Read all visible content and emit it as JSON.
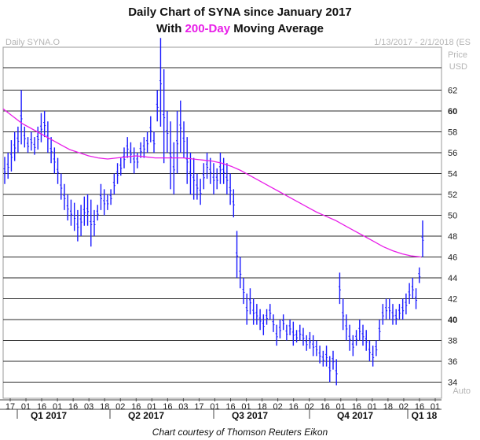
{
  "chart_data": {
    "type": "line",
    "title_line1": "Daily Chart of SYNA since January 2017",
    "title_line2_prefix": "With ",
    "title_line2_highlight": "200-Day",
    "title_line2_suffix": " Moving Average",
    "symbol": "Daily SYNA.O",
    "date_range": "1/13/2017 - 2/1/2018 (ES",
    "unit_price": "Price",
    "unit_currency": "USD",
    "auto_label": "Auto",
    "credit": "Chart courtesy of Thomson Reuters Eikon",
    "ylim": [
      33,
      67
    ],
    "y_ticks": [
      34,
      36,
      38,
      40,
      42,
      44,
      46,
      48,
      50,
      52,
      54,
      56,
      58,
      60,
      62
    ],
    "y_bold_ticks": [
      40,
      60
    ],
    "grid": true,
    "x_tick_labels": [
      "17",
      "01",
      "16",
      "01",
      "16",
      "03",
      "18",
      "02",
      "16",
      "01",
      "16",
      "03",
      "17",
      "01",
      "16",
      "01",
      "18",
      "02",
      "16",
      "02",
      "16",
      "01",
      "16",
      "01",
      "18",
      "02",
      "16",
      "01"
    ],
    "quarters": [
      "Q1 2017",
      "Q2 2017",
      "Q3 2017",
      "Q4 2017",
      "Q1 18"
    ],
    "colors": {
      "price": "#1a1aff",
      "ma": "#e81ee8",
      "grid": "#2a2a2a",
      "tick_text": "#222222"
    },
    "series": [
      {
        "type": "ohlc",
        "color": "#1a1aff",
        "values": [
          [
            55.6,
            53.0
          ],
          [
            56.0,
            53.5
          ],
          [
            57.2,
            54.2
          ],
          [
            58.0,
            55.2
          ],
          [
            58.5,
            56.0
          ],
          [
            62.0,
            56.8
          ],
          [
            58.5,
            56.5
          ],
          [
            57.5,
            56.0
          ],
          [
            58.0,
            56.2
          ],
          [
            57.5,
            55.8
          ],
          [
            58.5,
            56.3
          ],
          [
            59.8,
            57.0
          ],
          [
            60.0,
            57.5
          ],
          [
            59.0,
            56.0
          ],
          [
            57.5,
            55.0
          ],
          [
            56.5,
            54.0
          ],
          [
            55.5,
            53.0
          ],
          [
            54.0,
            51.5
          ],
          [
            53.0,
            50.5
          ],
          [
            52.0,
            49.5
          ],
          [
            51.5,
            49.0
          ],
          [
            51.2,
            48.5
          ],
          [
            50.5,
            47.5
          ],
          [
            51.0,
            48.0
          ],
          [
            51.8,
            49.0
          ],
          [
            52.0,
            49.0
          ],
          [
            51.5,
            47.0
          ],
          [
            50.5,
            48.0
          ],
          [
            51.0,
            49.5
          ],
          [
            53.0,
            50.5
          ],
          [
            52.5,
            50.0
          ],
          [
            52.0,
            50.5
          ],
          [
            52.5,
            51.0
          ],
          [
            54.0,
            52.0
          ],
          [
            55.0,
            53.0
          ],
          [
            55.5,
            53.8
          ],
          [
            56.5,
            54.5
          ],
          [
            57.5,
            55.5
          ],
          [
            57.0,
            55.0
          ],
          [
            56.5,
            54.0
          ],
          [
            56.0,
            54.5
          ],
          [
            57.0,
            55.5
          ],
          [
            57.5,
            55.5
          ],
          [
            58.0,
            56.0
          ],
          [
            59.5,
            57.0
          ],
          [
            58.0,
            56.0
          ],
          [
            62.0,
            59.0
          ],
          [
            67.0,
            58.5
          ],
          [
            64.0,
            55.0
          ],
          [
            60.0,
            56.0
          ],
          [
            59.0,
            52.5
          ],
          [
            57.0,
            52.0
          ],
          [
            60.0,
            54.0
          ],
          [
            61.0,
            56.0
          ],
          [
            59.0,
            55.5
          ],
          [
            57.5,
            53.0
          ],
          [
            56.0,
            52.0
          ],
          [
            55.5,
            51.5
          ],
          [
            54.0,
            51.5
          ],
          [
            53.5,
            51.0
          ],
          [
            55.0,
            52.5
          ],
          [
            56.0,
            53.5
          ],
          [
            55.5,
            53.0
          ],
          [
            55.0,
            52.0
          ],
          [
            54.5,
            52.5
          ],
          [
            56.0,
            53.0
          ],
          [
            55.5,
            53.0
          ],
          [
            55.0,
            52.0
          ],
          [
            54.0,
            51.0
          ],
          [
            52.5,
            49.8
          ],
          [
            48.5,
            44.0
          ],
          [
            46.0,
            43.0
          ],
          [
            44.0,
            41.5
          ],
          [
            42.5,
            39.5
          ],
          [
            43.0,
            40.5
          ],
          [
            42.0,
            39.5
          ],
          [
            41.5,
            39.5
          ],
          [
            41.0,
            39.0
          ],
          [
            40.5,
            38.5
          ],
          [
            41.0,
            39.5
          ],
          [
            41.5,
            40.0
          ],
          [
            40.5,
            38.8
          ],
          [
            39.5,
            37.5
          ],
          [
            40.0,
            38.2
          ],
          [
            40.5,
            39.0
          ],
          [
            39.5,
            38.0
          ],
          [
            40.0,
            38.5
          ],
          [
            39.8,
            37.5
          ],
          [
            39.0,
            37.8
          ],
          [
            39.5,
            38.0
          ],
          [
            39.2,
            37.5
          ],
          [
            38.5,
            37.0
          ],
          [
            38.8,
            37.2
          ],
          [
            38.5,
            36.5
          ],
          [
            38.0,
            36.5
          ],
          [
            37.5,
            35.8
          ],
          [
            37.0,
            35.5
          ],
          [
            37.5,
            35.5
          ],
          [
            36.5,
            34.0
          ],
          [
            37.0,
            35.2
          ],
          [
            36.2,
            33.7
          ],
          [
            44.5,
            41.5
          ],
          [
            42.0,
            39.0
          ],
          [
            40.5,
            38.0
          ],
          [
            39.5,
            37.0
          ],
          [
            38.5,
            36.5
          ],
          [
            39.0,
            37.5
          ],
          [
            40.0,
            38.0
          ],
          [
            39.5,
            37.5
          ],
          [
            39.0,
            37.0
          ],
          [
            38.0,
            36.0
          ],
          [
            37.5,
            35.5
          ],
          [
            38.0,
            36.5
          ],
          [
            40.0,
            38.0
          ],
          [
            41.5,
            39.5
          ],
          [
            42.0,
            40.0
          ],
          [
            42.0,
            40.0
          ],
          [
            41.5,
            39.5
          ],
          [
            41.0,
            39.5
          ],
          [
            41.5,
            40.0
          ],
          [
            42.0,
            40.0
          ],
          [
            42.5,
            40.5
          ],
          [
            43.5,
            41.5
          ],
          [
            44.0,
            42.0
          ],
          [
            43.0,
            41.0
          ],
          [
            45.0,
            43.5
          ],
          [
            49.5,
            46.0
          ]
        ]
      },
      {
        "name": "200-Day",
        "type": "line",
        "color": "#e81ee8",
        "values": [
          60.2,
          59.5,
          58.8,
          58.3,
          57.8,
          57.3,
          56.8,
          56.3,
          56.0,
          55.7,
          55.5,
          55.4,
          55.5,
          55.6,
          55.7,
          55.6,
          55.5,
          55.5,
          55.5,
          55.5,
          55.4,
          55.3,
          55.2,
          55.0,
          54.7,
          54.3,
          53.8,
          53.3,
          52.8,
          52.3,
          51.8,
          51.3,
          50.8,
          50.3,
          49.9,
          49.5,
          49.0,
          48.5,
          48.0,
          47.5,
          47.0,
          46.6,
          46.3,
          46.1,
          46.0
        ]
      }
    ]
  }
}
